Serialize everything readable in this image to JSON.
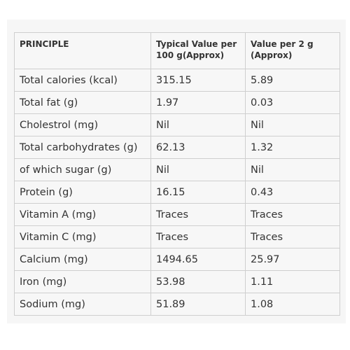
{
  "table": {
    "headers": [
      "PRINCIPLE",
      "Typical Value per 100 g(Approx)",
      "Value per 2 g (Approx)"
    ],
    "rows": [
      [
        "Total calories (kcal)",
        "315.15",
        "5.89"
      ],
      [
        "Total fat (g)",
        "1.97",
        "0.03"
      ],
      [
        "Cholestrol (mg)",
        "Nil",
        "Nil"
      ],
      [
        "Total carbohydrates (g)",
        "62.13",
        "1.32"
      ],
      [
        "of which sugar (g)",
        "Nil",
        "Nil"
      ],
      [
        "Protein (g)",
        "16.15",
        "0.43"
      ],
      [
        "Vitamin A (mg)",
        "Traces",
        "Traces"
      ],
      [
        "Vitamin C (mg)",
        "Traces",
        "Traces"
      ],
      [
        "Calcium (mg)",
        "1494.65",
        "25.97"
      ],
      [
        "Iron (mg)",
        "53.98",
        "1.11"
      ],
      [
        "Sodium (mg)",
        "51.89",
        "1.08"
      ]
    ]
  }
}
